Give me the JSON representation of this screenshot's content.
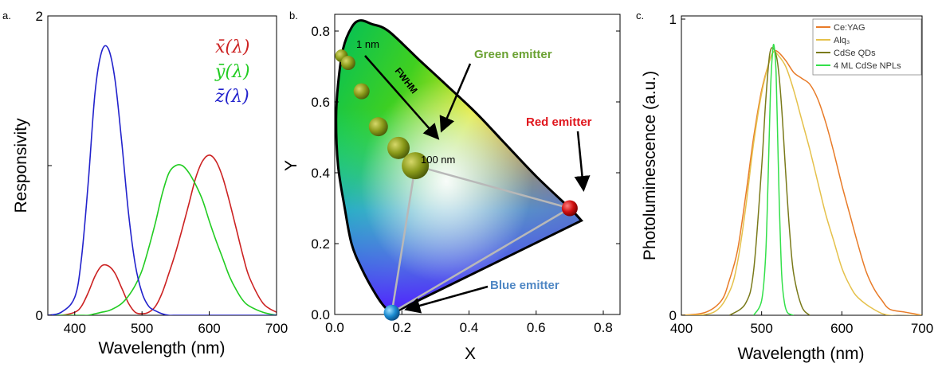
{
  "chart_data": [
    {
      "type": "line",
      "panel_label": "a.",
      "xlabel": "Wavelength (nm)",
      "ylabel": "Responsivity",
      "xlim": [
        360,
        700
      ],
      "ylim": [
        0,
        2
      ],
      "xticks": [
        "400",
        "500",
        "600",
        "700"
      ],
      "yticks": [
        "0",
        "2"
      ],
      "x": [
        360,
        380,
        400,
        410,
        420,
        430,
        440,
        450,
        460,
        470,
        480,
        490,
        500,
        510,
        520,
        530,
        540,
        550,
        560,
        570,
        580,
        590,
        600,
        610,
        620,
        630,
        640,
        650,
        660,
        680,
        700
      ],
      "series": [
        {
          "name": "x̄(λ)",
          "color": "#cc2222",
          "values": [
            0.0,
            0.0,
            0.02,
            0.06,
            0.15,
            0.26,
            0.33,
            0.33,
            0.28,
            0.18,
            0.08,
            0.02,
            0.01,
            0.02,
            0.06,
            0.15,
            0.28,
            0.42,
            0.58,
            0.75,
            0.92,
            1.03,
            1.07,
            1.03,
            0.92,
            0.76,
            0.58,
            0.4,
            0.25,
            0.08,
            0.02
          ]
        },
        {
          "name": "ȳ(λ)",
          "color": "#22cc22",
          "values": [
            0.0,
            0.0,
            0.0,
            0.0,
            0.0,
            0.01,
            0.02,
            0.03,
            0.05,
            0.08,
            0.13,
            0.2,
            0.3,
            0.45,
            0.62,
            0.81,
            0.95,
            1.0,
            1.0,
            0.95,
            0.87,
            0.77,
            0.63,
            0.5,
            0.38,
            0.26,
            0.17,
            0.1,
            0.06,
            0.02,
            0.0
          ]
        },
        {
          "name": "z̄(λ)",
          "color": "#2222cc",
          "values": [
            0.0,
            0.02,
            0.12,
            0.38,
            0.88,
            1.48,
            1.76,
            1.78,
            1.57,
            1.15,
            0.68,
            0.34,
            0.15,
            0.06,
            0.03,
            0.01,
            0.0,
            0.0,
            0.0,
            0.0,
            0.0,
            0.0,
            0.0,
            0.0,
            0.0,
            0.0,
            0.0,
            0.0,
            0.0,
            0.0,
            0.0
          ]
        }
      ],
      "legend_items": [
        "x̄(λ)",
        "ȳ(λ)",
        "z̄(λ)"
      ],
      "legend_placement": "top-right"
    },
    {
      "type": "scatter",
      "panel_label": "b.",
      "xlabel": "X",
      "ylabel": "Y",
      "xlim": [
        0,
        0.8
      ],
      "ylim": [
        0,
        0.85
      ],
      "xticks": [
        "0.0",
        "0.2",
        "0.4",
        "0.6",
        "0.8"
      ],
      "yticks": [
        "0.0",
        "0.2",
        "0.4",
        "0.6",
        "0.8"
      ],
      "locus": [
        [
          0.175,
          0.005
        ],
        [
          0.17,
          0.01
        ],
        [
          0.15,
          0.02
        ],
        [
          0.12,
          0.06
        ],
        [
          0.08,
          0.13
        ],
        [
          0.05,
          0.2
        ],
        [
          0.03,
          0.3
        ],
        [
          0.01,
          0.42
        ],
        [
          0.004,
          0.55
        ],
        [
          0.01,
          0.65
        ],
        [
          0.025,
          0.75
        ],
        [
          0.05,
          0.81
        ],
        [
          0.075,
          0.83
        ],
        [
          0.11,
          0.82
        ],
        [
          0.16,
          0.8
        ],
        [
          0.25,
          0.72
        ],
        [
          0.33,
          0.65
        ],
        [
          0.42,
          0.57
        ],
        [
          0.5,
          0.49
        ],
        [
          0.6,
          0.39
        ],
        [
          0.7,
          0.3
        ],
        [
          0.735,
          0.265
        ]
      ],
      "green_emitters": [
        {
          "x": 0.02,
          "y": 0.73,
          "r": 8
        },
        {
          "x": 0.04,
          "y": 0.71,
          "r": 9
        },
        {
          "x": 0.08,
          "y": 0.63,
          "r": 10
        },
        {
          "x": 0.13,
          "y": 0.53,
          "r": 12
        },
        {
          "x": 0.19,
          "y": 0.47,
          "r": 14
        },
        {
          "x": 0.24,
          "y": 0.42,
          "r": 17
        }
      ],
      "red_emitter": {
        "x": 0.7,
        "y": 0.3
      },
      "blue_emitter": {
        "x": 0.17,
        "y": 0.005
      },
      "annotations": {
        "green": "Green emitter",
        "red": "Red emitter",
        "blue": "Blue emitter",
        "fwhm": "FWHM",
        "min_width": "1 nm",
        "max_width": "100 nm"
      },
      "annotation_colors": {
        "green": "#6aa132",
        "red": "#e0161d",
        "blue": "#4f87c4"
      }
    },
    {
      "type": "line",
      "panel_label": "c.",
      "xlabel": "Wavelength (nm)",
      "ylabel": "Photoluminescence (a.u.)",
      "xlim": [
        400,
        700
      ],
      "ylim": [
        0,
        1
      ],
      "xticks": [
        "400",
        "500",
        "600",
        "700"
      ],
      "yticks": [
        "0",
        "1"
      ],
      "series": [
        {
          "name": "Ce:YAG",
          "color": "#e87b28",
          "x": [
            400,
            430,
            450,
            460,
            470,
            480,
            490,
            500,
            510,
            515,
            520,
            530,
            540,
            550,
            560,
            570,
            580,
            590,
            600,
            610,
            620,
            630,
            640,
            650,
            660,
            680,
            700
          ],
          "values": [
            0.0,
            0.01,
            0.05,
            0.12,
            0.22,
            0.4,
            0.6,
            0.76,
            0.86,
            0.89,
            0.89,
            0.86,
            0.82,
            0.8,
            0.78,
            0.73,
            0.65,
            0.55,
            0.44,
            0.34,
            0.24,
            0.15,
            0.09,
            0.05,
            0.02,
            0.01,
            0.0
          ]
        },
        {
          "name": "Alq₃",
          "color": "#e5c14b",
          "x": [
            400,
            440,
            460,
            470,
            480,
            490,
            500,
            510,
            515,
            520,
            530,
            540,
            550,
            560,
            570,
            580,
            590,
            600,
            610,
            620,
            640,
            660,
            700
          ],
          "values": [
            0.0,
            0.01,
            0.08,
            0.18,
            0.36,
            0.58,
            0.75,
            0.86,
            0.89,
            0.88,
            0.84,
            0.76,
            0.66,
            0.56,
            0.45,
            0.34,
            0.25,
            0.16,
            0.1,
            0.06,
            0.02,
            0.0,
            0.0
          ]
        },
        {
          "name": "CdSe QDs",
          "color": "#7a7a1a",
          "x": [
            460,
            480,
            490,
            500,
            505,
            510,
            515,
            520,
            525,
            530,
            535,
            540,
            550,
            560
          ],
          "values": [
            0.0,
            0.04,
            0.15,
            0.5,
            0.72,
            0.88,
            0.9,
            0.85,
            0.7,
            0.48,
            0.28,
            0.14,
            0.03,
            0.0
          ]
        },
        {
          "name": "4 ML CdSe NPLs",
          "color": "#33e04a",
          "x": [
            490,
            500,
            505,
            508,
            511,
            514,
            516,
            518,
            520,
            522,
            525,
            528,
            532,
            540
          ],
          "values": [
            0.0,
            0.05,
            0.2,
            0.45,
            0.75,
            0.9,
            0.9,
            0.82,
            0.6,
            0.38,
            0.14,
            0.05,
            0.01,
            0.0
          ]
        }
      ],
      "legend_placement": "top-right"
    }
  ]
}
